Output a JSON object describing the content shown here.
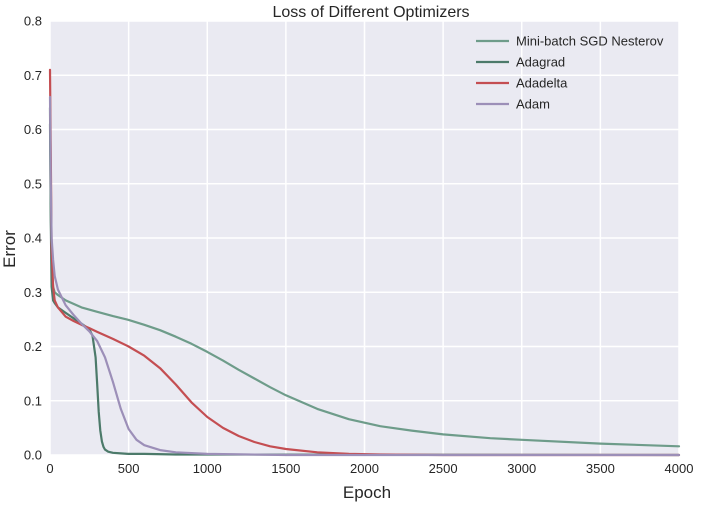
{
  "chart_data": {
    "type": "line",
    "title": "Loss of Different Optimizers",
    "xlabel": "Epoch",
    "ylabel": "Error",
    "xlim": [
      0,
      4000
    ],
    "ylim": [
      0.0,
      0.8
    ],
    "x_ticks": [
      0,
      500,
      1000,
      1500,
      2000,
      2500,
      3000,
      3500,
      4000
    ],
    "y_ticks": [
      0.0,
      0.1,
      0.2,
      0.3,
      0.4,
      0.5,
      0.6,
      0.7,
      0.8
    ],
    "y_tick_labels": [
      "0.0",
      "0.1",
      "0.2",
      "0.3",
      "0.4",
      "0.5",
      "0.6",
      "0.7",
      "0.8"
    ],
    "grid": true,
    "legend_position": "top-right",
    "colors": {
      "plot_background": "#eaeaf2",
      "grid": "#ffffff",
      "text": "#262626"
    },
    "series": [
      {
        "name": "Mini-batch SGD Nesterov",
        "color": "#6e9c8a",
        "x": [
          0,
          5,
          10,
          20,
          30,
          50,
          100,
          200,
          300,
          400,
          500,
          600,
          700,
          800,
          900,
          1000,
          1100,
          1200,
          1300,
          1400,
          1500,
          1700,
          1900,
          2100,
          2300,
          2500,
          2800,
          3000,
          3500,
          4000
        ],
        "y": [
          0.61,
          0.45,
          0.35,
          0.31,
          0.3,
          0.295,
          0.285,
          0.272,
          0.264,
          0.256,
          0.249,
          0.24,
          0.23,
          0.218,
          0.205,
          0.19,
          0.174,
          0.157,
          0.141,
          0.125,
          0.11,
          0.085,
          0.066,
          0.053,
          0.045,
          0.038,
          0.031,
          0.028,
          0.021,
          0.016
        ]
      },
      {
        "name": "Adagrad",
        "color": "#4c7a6a",
        "x": [
          0,
          5,
          10,
          20,
          30,
          50,
          100,
          150,
          200,
          250,
          270,
          290,
          300,
          310,
          320,
          330,
          340,
          350,
          370,
          400,
          450,
          500,
          600,
          800,
          1000,
          4000
        ],
        "y": [
          0.64,
          0.43,
          0.31,
          0.285,
          0.28,
          0.272,
          0.262,
          0.252,
          0.242,
          0.232,
          0.22,
          0.18,
          0.13,
          0.08,
          0.045,
          0.025,
          0.015,
          0.01,
          0.006,
          0.004,
          0.003,
          0.002,
          0.002,
          0.001,
          0.001,
          0.0
        ]
      },
      {
        "name": "Adadelta",
        "color": "#c44e52",
        "x": [
          0,
          5,
          10,
          20,
          30,
          50,
          100,
          150,
          200,
          250,
          300,
          400,
          500,
          600,
          700,
          800,
          900,
          1000,
          1100,
          1200,
          1300,
          1400,
          1500,
          1700,
          1900,
          2100,
          2500,
          3000,
          4000
        ],
        "y": [
          0.71,
          0.55,
          0.38,
          0.31,
          0.285,
          0.272,
          0.255,
          0.247,
          0.24,
          0.234,
          0.227,
          0.214,
          0.2,
          0.183,
          0.16,
          0.13,
          0.097,
          0.07,
          0.05,
          0.035,
          0.024,
          0.016,
          0.011,
          0.005,
          0.002,
          0.001,
          0.0,
          0.0,
          0.0
        ]
      },
      {
        "name": "Adam",
        "color": "#9c8fb8",
        "x": [
          0,
          5,
          10,
          20,
          30,
          50,
          100,
          150,
          200,
          250,
          300,
          350,
          400,
          450,
          500,
          550,
          600,
          700,
          800,
          1000,
          1500,
          4000
        ],
        "y": [
          0.66,
          0.5,
          0.4,
          0.36,
          0.33,
          0.305,
          0.276,
          0.258,
          0.242,
          0.228,
          0.21,
          0.18,
          0.135,
          0.085,
          0.048,
          0.028,
          0.018,
          0.009,
          0.005,
          0.002,
          0.0,
          0.0
        ]
      }
    ]
  }
}
